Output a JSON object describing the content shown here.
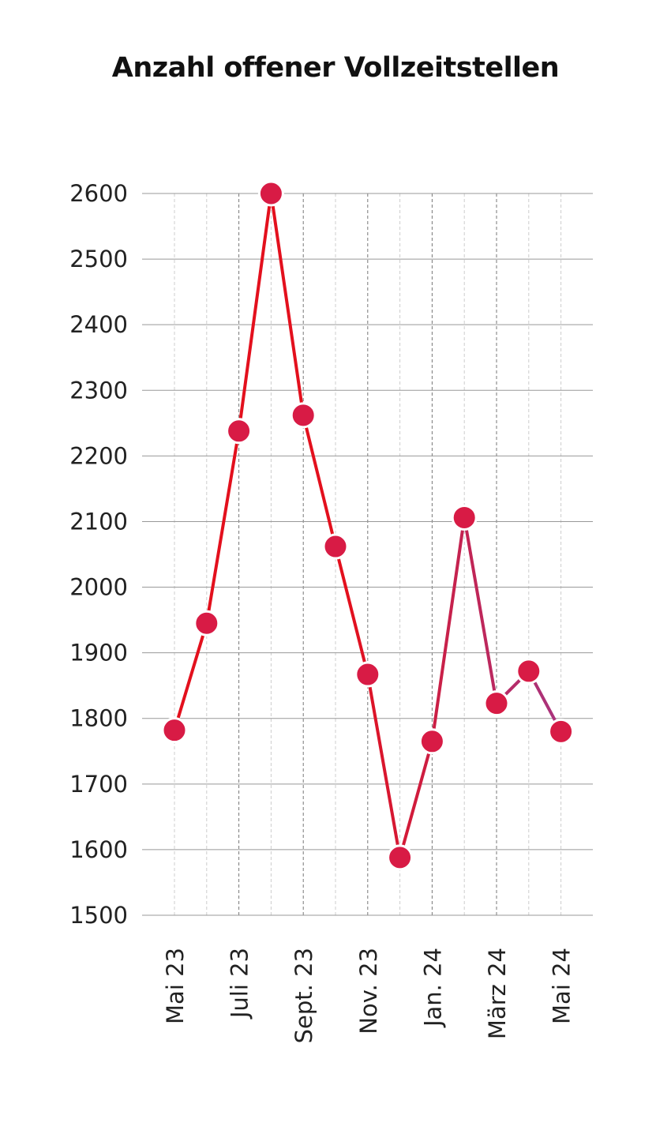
{
  "chart_data": {
    "type": "line",
    "title": "Anzahl offener Vollzeitstellen",
    "xlabel": "",
    "ylabel": "",
    "ylim": [
      1500,
      2600
    ],
    "yticks": [
      1500,
      1600,
      1700,
      1800,
      1900,
      2000,
      2100,
      2200,
      2300,
      2400,
      2500,
      2600
    ],
    "x_tick_labels": [
      "Mai 23",
      "Juli 23",
      "Sept. 23",
      "Nov. 23",
      "Jan. 24",
      "März 24",
      "Mai 24"
    ],
    "grid": true,
    "x": [
      "2023-05",
      "2023-06",
      "2023-07",
      "2023-08",
      "2023-09",
      "2023-10",
      "2023-11",
      "2023-12",
      "2024-01",
      "2024-02",
      "2024-03",
      "2024-04",
      "2024-05"
    ],
    "values": [
      1782,
      1945,
      2238,
      2600,
      2262,
      2062,
      1867,
      1588,
      1765,
      2106,
      1823,
      1872,
      1780
    ],
    "colors": {
      "line_start": "#e3101d",
      "line_end": "#a8347f",
      "marker": "#d81b45",
      "marker_stroke": "#ffffff",
      "grid": "#999999"
    }
  }
}
